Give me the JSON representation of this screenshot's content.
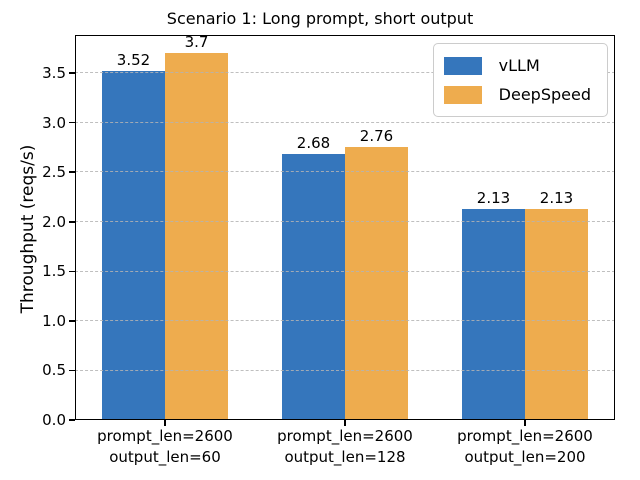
{
  "chart_data": {
    "type": "bar",
    "title": "Scenario 1: Long prompt, short output",
    "ylabel": "Throughput (reqs/s)",
    "xlabel": "",
    "ylim": [
      0,
      3.885
    ],
    "yticks": [
      "0.0",
      "0.5",
      "1.0",
      "1.5",
      "2.0",
      "2.5",
      "3.0",
      "3.5"
    ],
    "grid": "horizontal-dashed",
    "gridline_color": "#b4b4b4",
    "legend_position": "upper right",
    "categories": [
      {
        "line1": "prompt_len=2600",
        "line2": "output_len=60"
      },
      {
        "line1": "prompt_len=2600",
        "line2": "output_len=128"
      },
      {
        "line1": "prompt_len=2600",
        "line2": "output_len=200"
      }
    ],
    "series": [
      {
        "name": "vLLM",
        "color": "#3576bc",
        "values": [
          3.52,
          2.68,
          2.13
        ],
        "labels": [
          "3.52",
          "2.68",
          "2.13"
        ]
      },
      {
        "name": "DeepSpeed",
        "color": "#eeac4e",
        "values": [
          3.7,
          2.76,
          2.13
        ],
        "labels": [
          "3.7",
          "2.76",
          "2.13"
        ]
      }
    ]
  }
}
